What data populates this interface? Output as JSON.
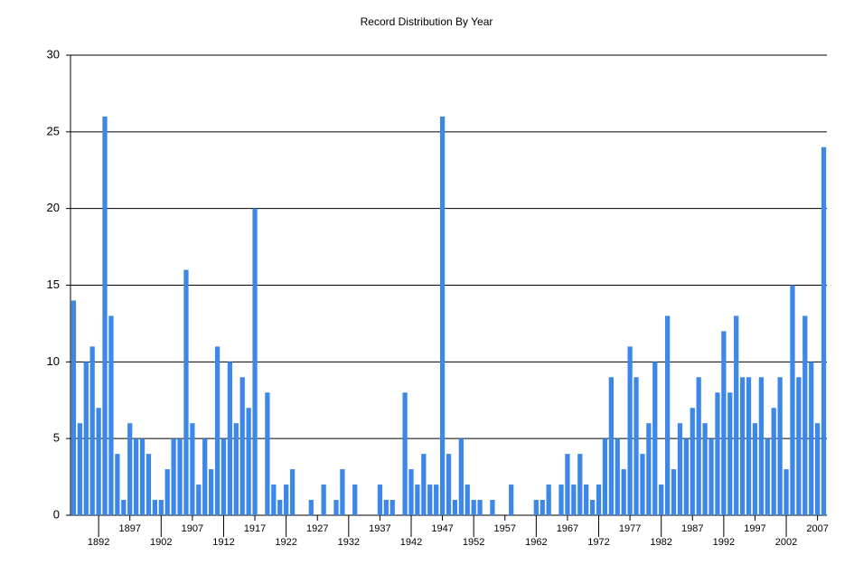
{
  "chart_data": {
    "type": "bar",
    "title": "Record Distribution By Year",
    "categories": [
      null,
      null,
      null,
      null,
      "1892",
      null,
      null,
      null,
      null,
      "1897",
      null,
      null,
      null,
      null,
      "1902",
      null,
      null,
      null,
      null,
      "1907",
      null,
      null,
      null,
      null,
      "1912",
      null,
      null,
      null,
      null,
      "1917",
      null,
      null,
      null,
      null,
      "1922",
      null,
      null,
      null,
      null,
      "1927",
      null,
      null,
      null,
      null,
      "1932",
      null,
      null,
      null,
      null,
      "1937",
      null,
      null,
      null,
      null,
      "1942",
      null,
      null,
      null,
      null,
      "1947",
      null,
      null,
      null,
      null,
      "1952",
      null,
      null,
      null,
      null,
      "1957",
      null,
      null,
      null,
      null,
      "1962",
      null,
      null,
      null,
      null,
      "1967",
      null,
      null,
      null,
      null,
      "1972",
      null,
      null,
      null,
      null,
      "1977",
      null,
      null,
      null,
      null,
      "1982",
      null,
      null,
      null,
      null,
      "1987",
      null,
      null,
      null,
      null,
      "1992",
      null,
      null,
      null,
      null,
      "1997",
      null,
      null,
      null,
      null,
      "2002",
      null,
      null,
      null,
      null,
      "2007",
      null
    ],
    "values": [
      14,
      6,
      10,
      11,
      7,
      26,
      13,
      4,
      1,
      6,
      5,
      5,
      4,
      1,
      1,
      3,
      5,
      5,
      16,
      6,
      2,
      5,
      3,
      11,
      5,
      10,
      6,
      9,
      7,
      20,
      0,
      8,
      2,
      1,
      2,
      3,
      0,
      0,
      1,
      0,
      2,
      0,
      1,
      3,
      0,
      2,
      0,
      0,
      0,
      2,
      1,
      1,
      0,
      8,
      3,
      2,
      4,
      2,
      2,
      26,
      4,
      1,
      5,
      2,
      1,
      1,
      0,
      1,
      0,
      0,
      2,
      0,
      0,
      0,
      1,
      1,
      2,
      0,
      2,
      4,
      2,
      4,
      2,
      1,
      2,
      5,
      9,
      5,
      3,
      11,
      9,
      4,
      6,
      10,
      2,
      13,
      3,
      6,
      5,
      7,
      9,
      6,
      5,
      8,
      12,
      8,
      13,
      9,
      9,
      6,
      9,
      5,
      7,
      9,
      3,
      15,
      9,
      13,
      10,
      6,
      24
    ],
    "color": "#3c87e8",
    "ylim": [
      0,
      30
    ],
    "yticks": [
      0,
      5,
      10,
      15,
      20,
      25,
      30
    ],
    "grid": true
  }
}
